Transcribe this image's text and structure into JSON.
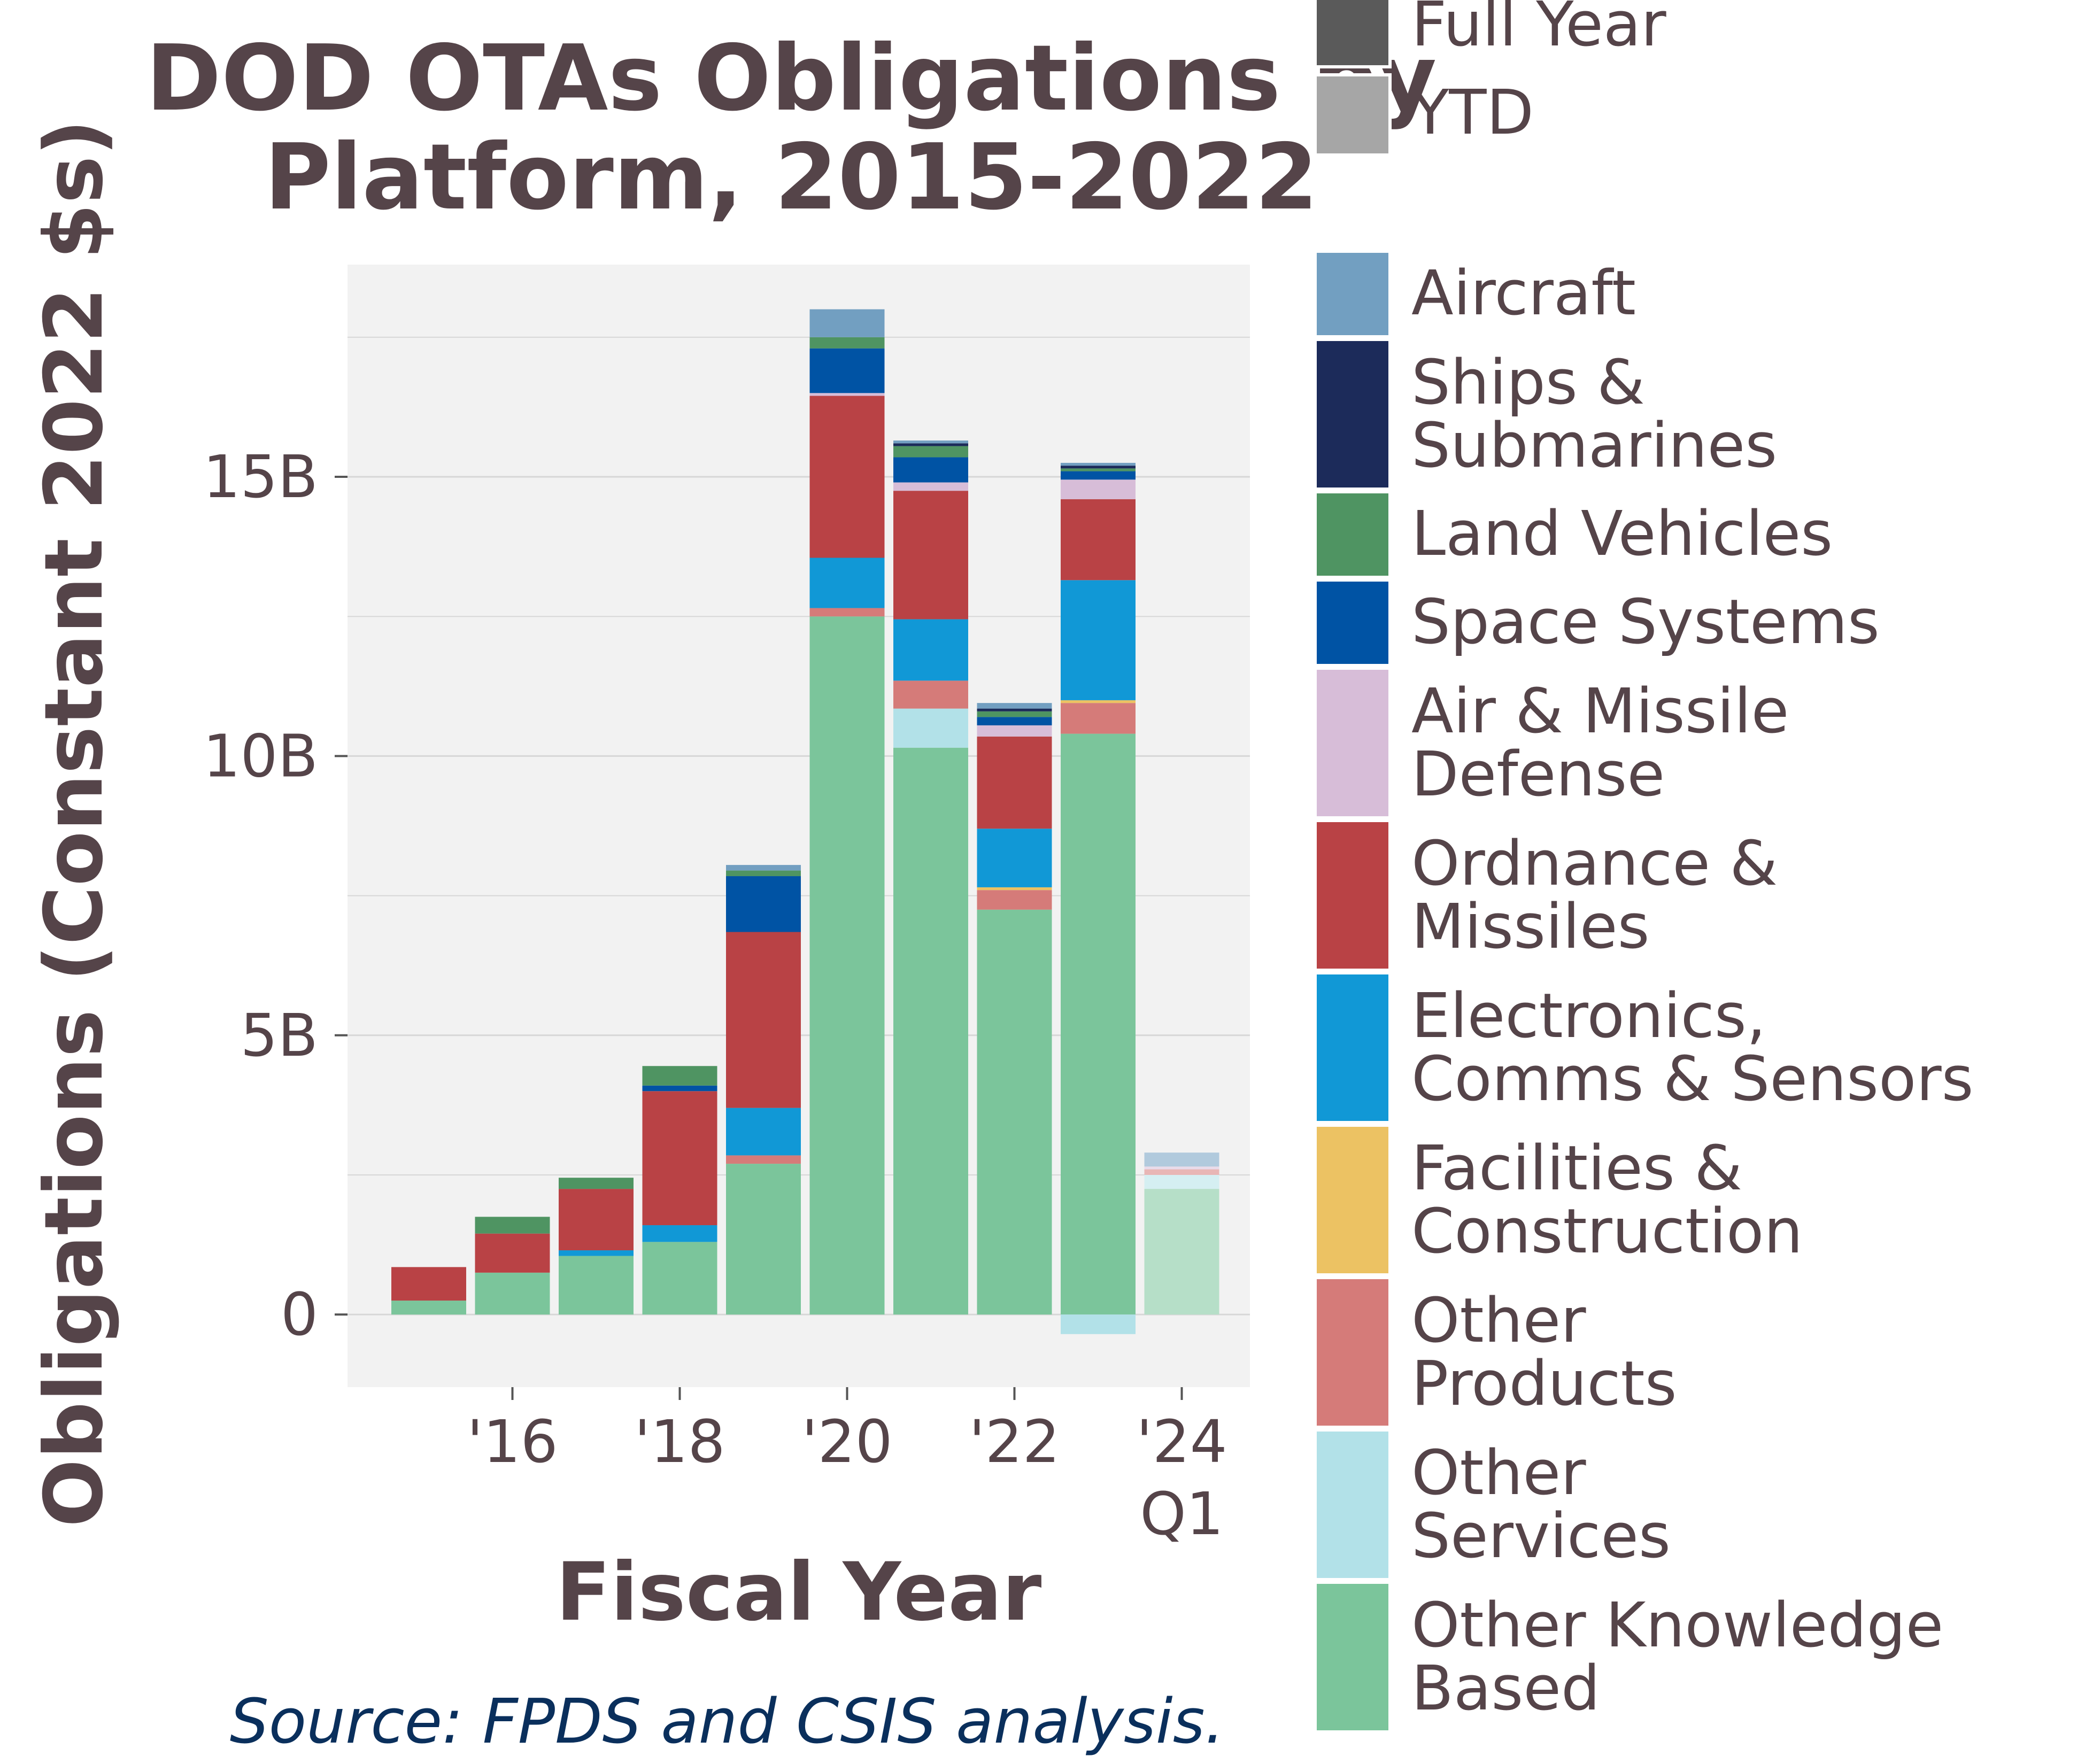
{
  "chart_data": {
    "type": "bar",
    "stacked": true,
    "title": [
      "DOD OTAs Obligations by",
      "Platform, 2015-2022"
    ],
    "xlabel": "Fiscal Year",
    "ylabel": "Obligations (Constant 2022 $s)",
    "caption": "Source: FPDS and CSIS analysis.",
    "ylim": [
      -1.3,
      18.8
    ],
    "yticks": [
      {
        "value": 0,
        "label": "0"
      },
      {
        "value": 5,
        "label": "5B"
      },
      {
        "value": 10,
        "label": "10B"
      },
      {
        "value": 15,
        "label": "15B"
      }
    ],
    "grid": true,
    "legend_position": "right",
    "categories": [
      "2015",
      "2016",
      "2017",
      "2018",
      "2019",
      "2020",
      "2021",
      "2022",
      "2023",
      "2024 Q1"
    ],
    "x_tick_labels": [
      {
        "category": "2016",
        "label": "'16"
      },
      {
        "category": "2018",
        "label": "'18"
      },
      {
        "category": "2020",
        "label": "'20"
      },
      {
        "category": "2022",
        "label": "'22"
      },
      {
        "category": "2024 Q1",
        "label": "'24"
      },
      {
        "category": "2024 Q1",
        "label": "Q1",
        "line": 2
      }
    ],
    "period_type": [
      "Full Year",
      "Full Year",
      "Full Year",
      "Full Year",
      "Full Year",
      "Full Year",
      "Full Year",
      "Full Year",
      "Full Year",
      "YTD"
    ],
    "period_legend": [
      {
        "name": "Full Year",
        "color": "#5a5a5a"
      },
      {
        "name": "YTD",
        "color": "#a6a6a6"
      }
    ],
    "series": [
      {
        "name": "Other Knowledge Based",
        "label_lines": [
          "Other Knowledge",
          "Based"
        ],
        "color": "#7bc59b",
        "values": [
          0.25,
          0.75,
          1.05,
          1.3,
          2.7,
          12.5,
          10.15,
          7.25,
          10.4,
          2.25
        ]
      },
      {
        "name": "Other Services",
        "label_lines": [
          "Other",
          "Services"
        ],
        "color": "#b2e1e8",
        "values": [
          0,
          0,
          0,
          0,
          0,
          0,
          0.7,
          0,
          -0.35,
          0.25
        ]
      },
      {
        "name": "Other Products",
        "label_lines": [
          "Other",
          "Products"
        ],
        "color": "#d57b79",
        "values": [
          0,
          0,
          0,
          0,
          0.15,
          0.15,
          0.5,
          0.35,
          0.55,
          0.1
        ]
      },
      {
        "name": "Facilities & Construction",
        "label_lines": [
          "Facilities &",
          "Construction"
        ],
        "color": "#ecc263",
        "values": [
          0,
          0,
          0,
          0,
          0,
          0,
          0,
          0.05,
          0.05,
          0
        ]
      },
      {
        "name": "Electronics, Comms & Sensors",
        "label_lines": [
          "Electronics,",
          "Comms & Sensors"
        ],
        "color": "#1198d6",
        "values": [
          0,
          0,
          0.1,
          0.3,
          0.85,
          0.9,
          1.1,
          1.05,
          2.15,
          0
        ]
      },
      {
        "name": "Ordnance & Missiles",
        "label_lines": [
          "Ordnance &",
          "Missiles"
        ],
        "color": "#b94245",
        "values": [
          0.6,
          0.7,
          1.1,
          2.4,
          3.15,
          2.9,
          2.3,
          1.65,
          1.45,
          0
        ]
      },
      {
        "name": "Air & Missile Defense",
        "label_lines": [
          "Air & Missile",
          "Defense"
        ],
        "color": "#d7bdd8",
        "values": [
          0,
          0,
          0,
          0,
          0,
          0.05,
          0.15,
          0.2,
          0.35,
          0.05
        ]
      },
      {
        "name": "Space Systems",
        "label_lines": [
          "Space Systems"
        ],
        "color": "#0053a4",
        "values": [
          0,
          0,
          0,
          0.1,
          1.0,
          0.8,
          0.45,
          0.15,
          0.15,
          0
        ]
      },
      {
        "name": "Land Vehicles",
        "label_lines": [
          "Land Vehicles"
        ],
        "color": "#4f9462",
        "values": [
          0,
          0.3,
          0.2,
          0.35,
          0.1,
          0.2,
          0.2,
          0.1,
          0.05,
          0
        ]
      },
      {
        "name": "Ships & Submarines",
        "label_lines": [
          "Ships &",
          "Submarines"
        ],
        "color": "#1c2b5a",
        "values": [
          0,
          0,
          0,
          0,
          0,
          0,
          0.05,
          0.05,
          0.05,
          0
        ]
      },
      {
        "name": "Aircraft",
        "label_lines": [
          "Aircraft"
        ],
        "color": "#729fc1",
        "values": [
          0,
          0,
          0,
          0,
          0.1,
          0.5,
          0.05,
          0.1,
          0.05,
          0.25
        ]
      }
    ]
  }
}
